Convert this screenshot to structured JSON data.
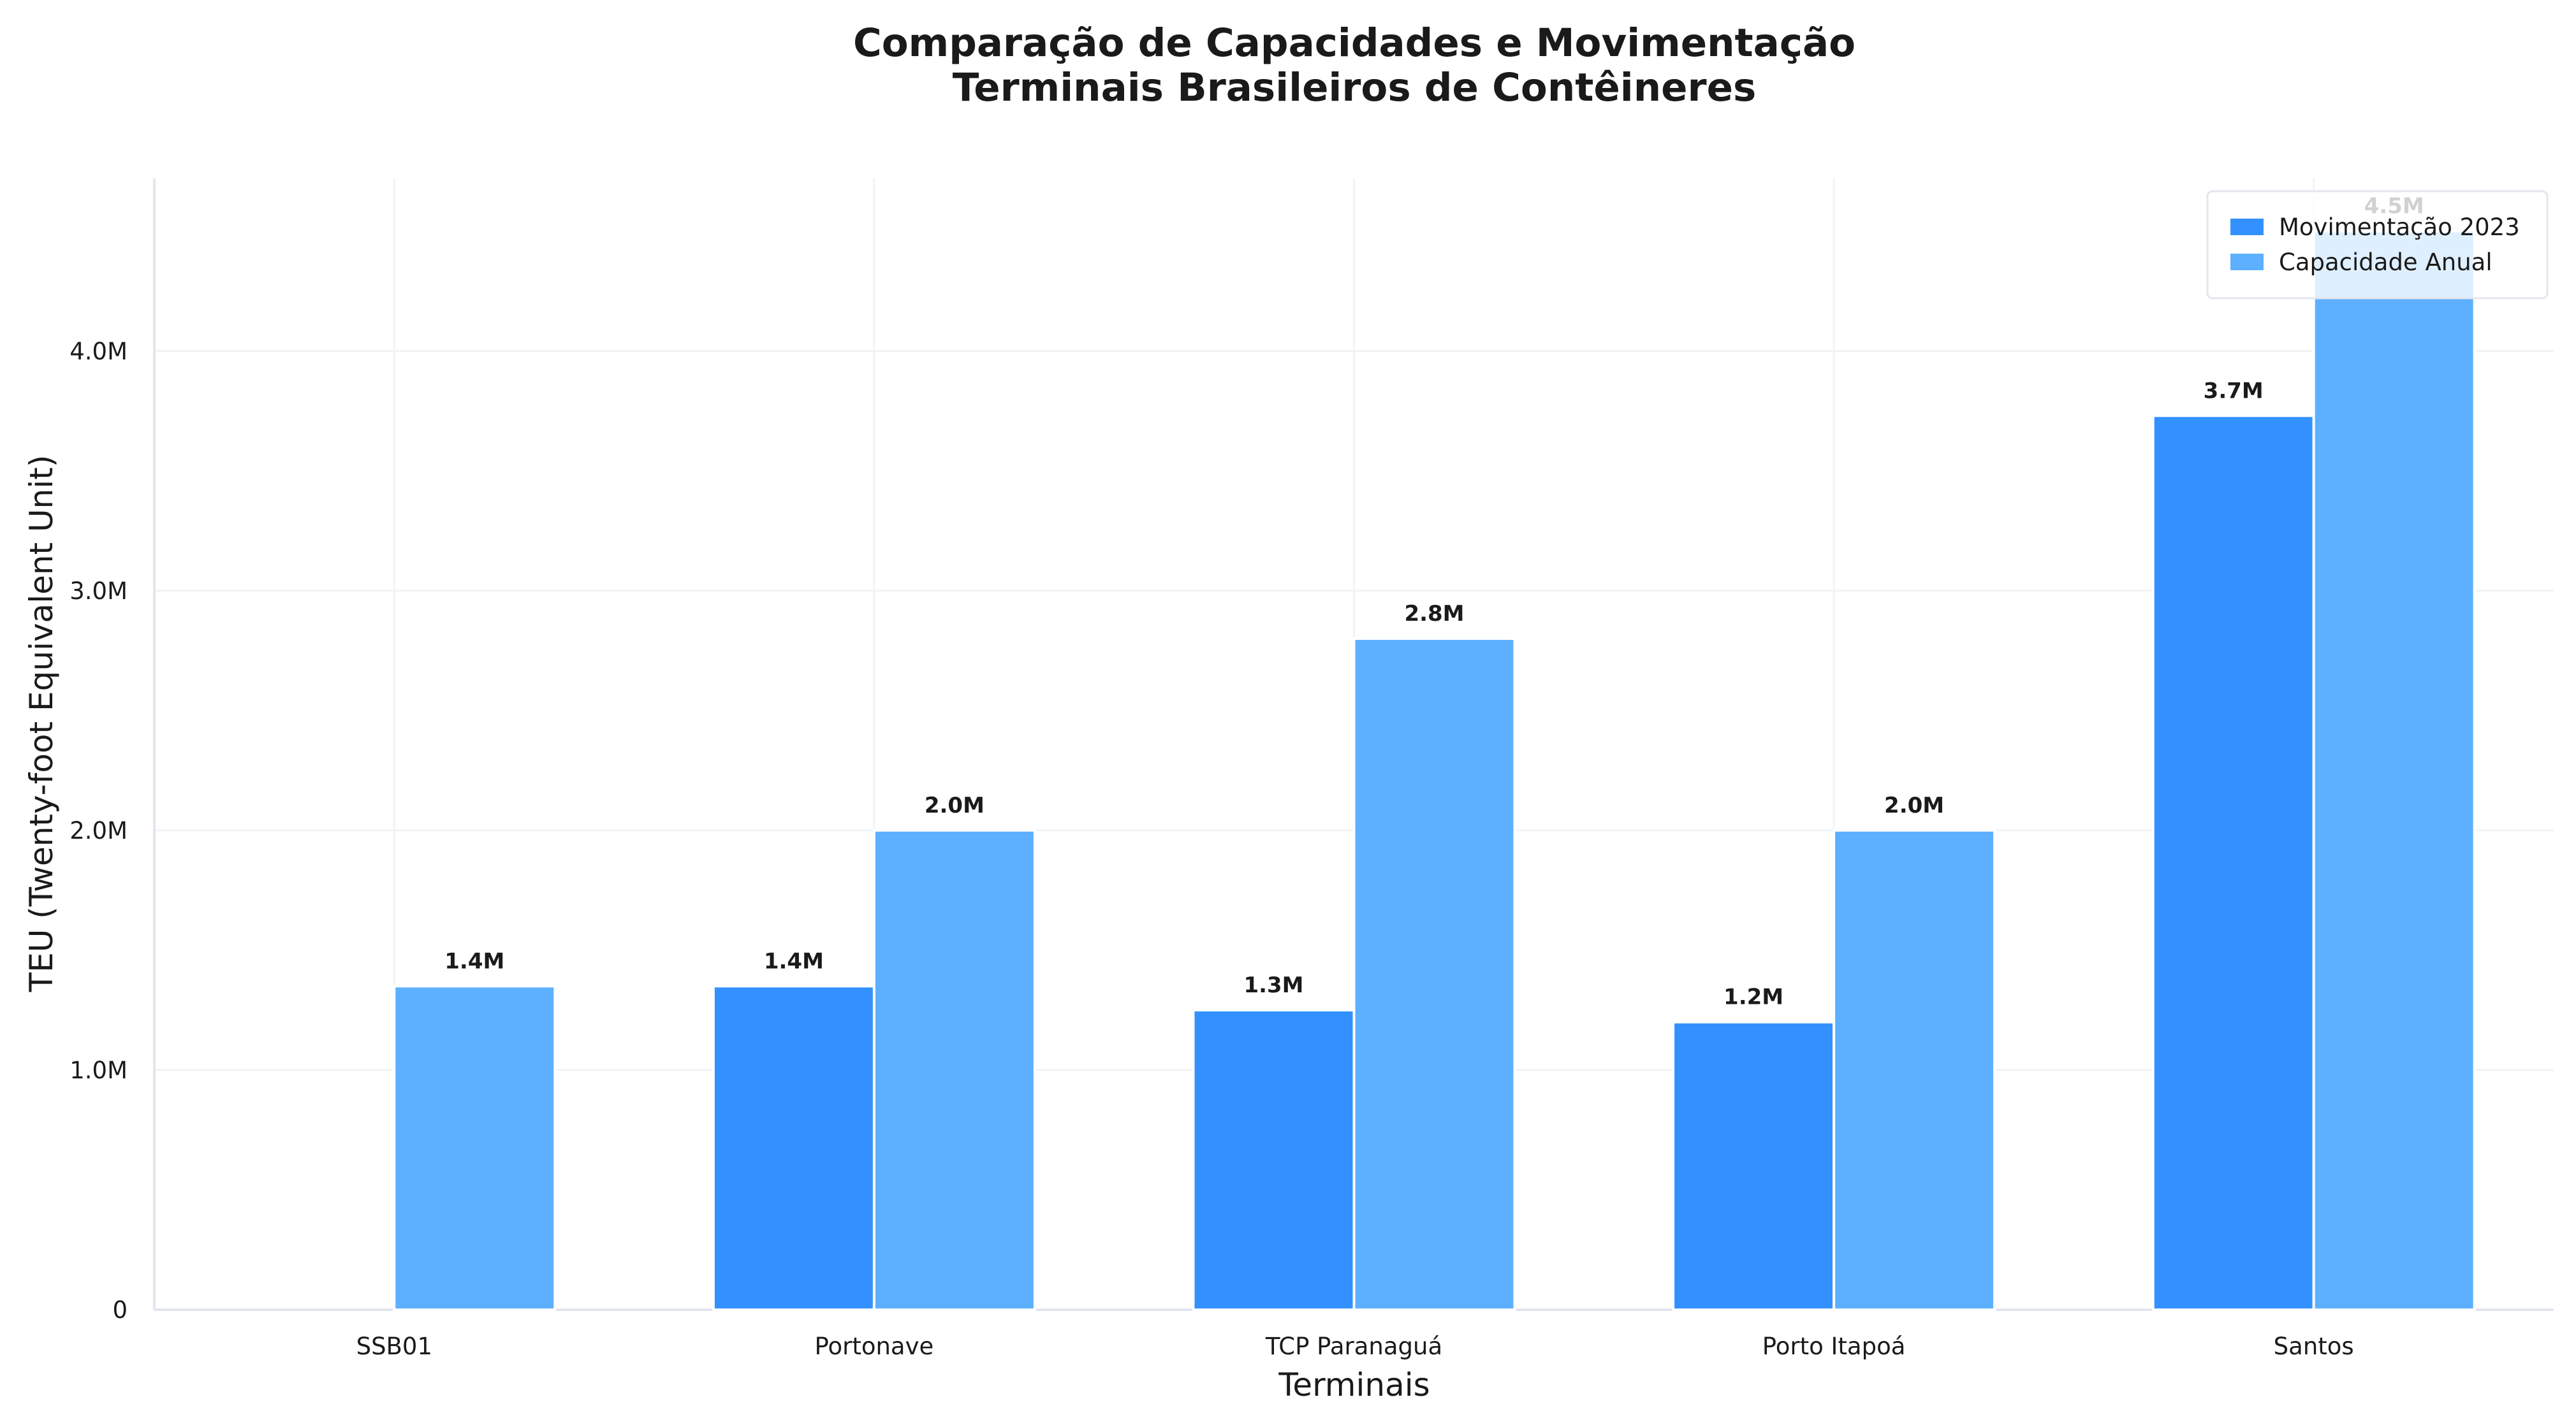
{
  "chart_data": {
    "type": "bar",
    "title_lines": [
      "Comparação de Capacidades e Movimentação",
      "Terminais Brasileiros de Contêineres"
    ],
    "xlabel": "Terminais",
    "ylabel": "TEU (Twenty-foot Equivalent Unit)",
    "categories": [
      "SSB01",
      "Portonave",
      "TCP Paranaguá",
      "Porto Itapoá",
      "Santos"
    ],
    "series": [
      {
        "name": "Movimentação 2023",
        "color": "#3391ff",
        "values": [
          0,
          1350000,
          1250000,
          1200000,
          3730000
        ],
        "labels": [
          "",
          "1.4M",
          "1.3M",
          "1.2M",
          "3.7M"
        ]
      },
      {
        "name": "Capacidade Anual",
        "color": "#5cb0ff",
        "values": [
          1350000,
          2000000,
          2800000,
          2000000,
          4500000
        ],
        "labels": [
          "1.4M",
          "2.0M",
          "2.8M",
          "2.0M",
          "4.5M"
        ]
      }
    ],
    "y_ticks": [
      {
        "value": 0,
        "label": "0"
      },
      {
        "value": 1000000,
        "label": "1.0M"
      },
      {
        "value": 2000000,
        "label": "2.0M"
      },
      {
        "value": 3000000,
        "label": "3.0M"
      },
      {
        "value": 4000000,
        "label": "4.0M"
      }
    ],
    "ylim": [
      0,
      4720000
    ],
    "grid": true,
    "legend_position": "top-right"
  }
}
